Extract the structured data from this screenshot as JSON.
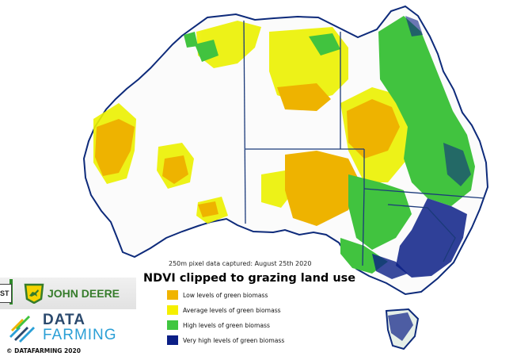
{
  "caption": "250m pixel data captured: August 25th 2020",
  "title": "NDVI clipped to grazing land use",
  "legend": [
    {
      "label": "Low levels of green biomass",
      "color": "#f0b400"
    },
    {
      "label": "Average levels of green biomass",
      "color": "#f5ef00"
    },
    {
      "label": "High levels of green biomass",
      "color": "#40c640"
    },
    {
      "label": "Very high levels of green biomass",
      "color": "#0b1f86"
    }
  ],
  "sponsor": {
    "tab_text": "ST",
    "name": "JOHN DEERE"
  },
  "brand": {
    "line1": "DATA",
    "line2": "FARMING"
  },
  "copyright": "© DATAFARMING 2020",
  "colors": {
    "boundary": "#1b3a7a",
    "coast": "#0d2a7a"
  }
}
